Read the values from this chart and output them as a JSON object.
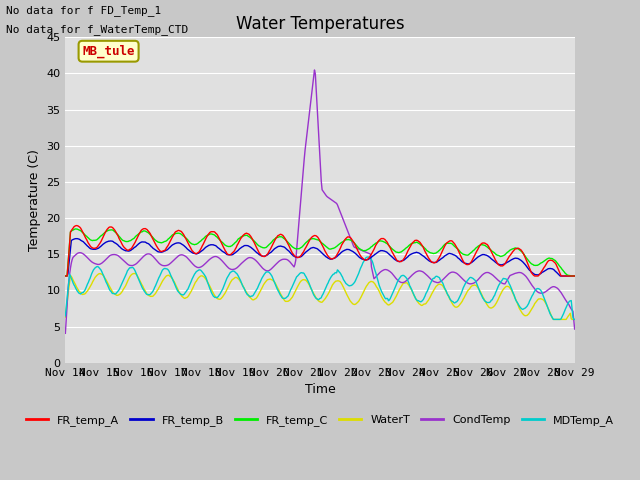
{
  "title": "Water Temperatures",
  "ylabel": "Temperature (C)",
  "xlabel": "Time",
  "annotations": [
    "No data for f FD_Temp_1",
    "No data for f_WaterTemp_CTD"
  ],
  "mb_tule_label": "MB_tule",
  "ylim": [
    0,
    45
  ],
  "yticks": [
    0,
    5,
    10,
    15,
    20,
    25,
    30,
    35,
    40,
    45
  ],
  "xlim": [
    0,
    15
  ],
  "xtick_labels": [
    "Nov 14",
    "Nov 15",
    "Nov 16",
    "Nov 17",
    "Nov 18",
    "Nov 19",
    "Nov 20",
    "Nov 21",
    "Nov 22",
    "Nov 23",
    "Nov 24",
    "Nov 25",
    "Nov 26",
    "Nov 27",
    "Nov 28",
    "Nov 29"
  ],
  "series_colors": {
    "FR_temp_A": "#ff0000",
    "FR_temp_B": "#0000cc",
    "FR_temp_C": "#00ee00",
    "WaterT": "#dddd00",
    "CondTemp": "#9933cc",
    "MDTemp_A": "#00cccc"
  },
  "fig_facecolor": "#c8c8c8",
  "plot_bg_color": "#e0e0e0",
  "grid_color": "#ffffff",
  "title_fontsize": 12,
  "axis_fontsize": 9,
  "tick_fontsize": 8,
  "legend_fontsize": 8
}
